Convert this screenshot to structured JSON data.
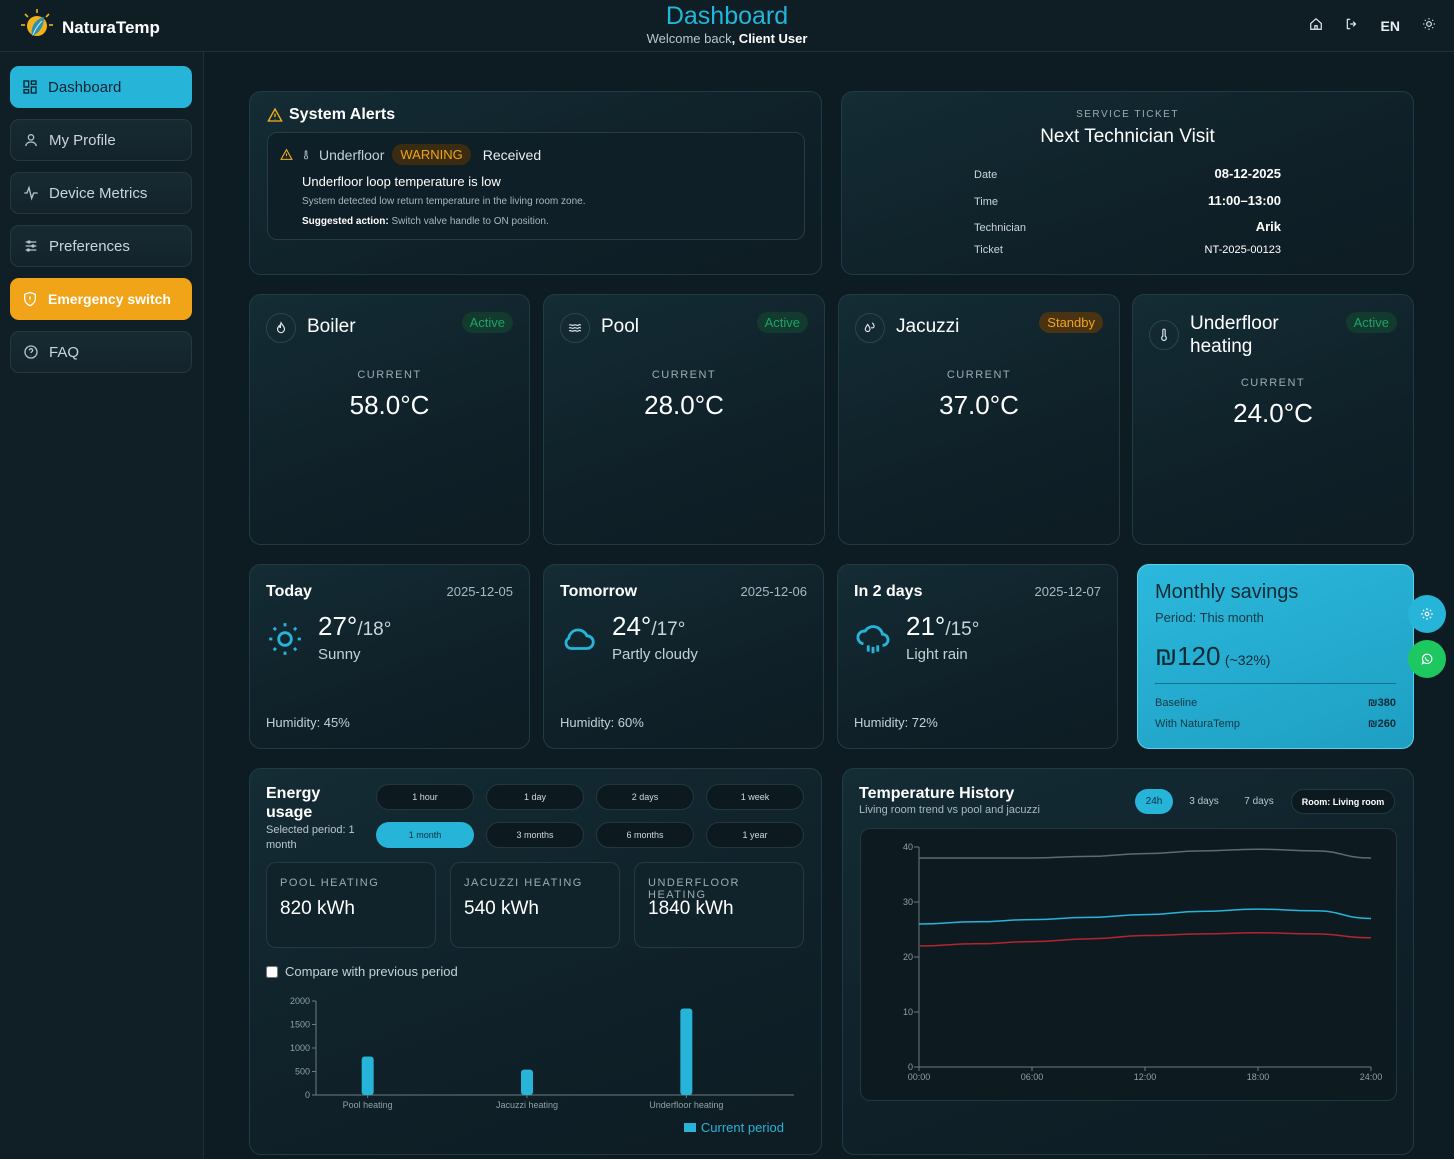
{
  "app": {
    "name": "NaturaTemp"
  },
  "header": {
    "title": "Dashboard",
    "welcome": "Welcome back",
    "user": ", Client User",
    "lang": "EN"
  },
  "sidebar": {
    "items": [
      {
        "label": "Dashboard",
        "icon": "grid-icon"
      },
      {
        "label": "My Profile",
        "icon": "user-icon"
      },
      {
        "label": "Device Metrics",
        "icon": "activity-icon"
      },
      {
        "label": "Preferences",
        "icon": "sliders-icon"
      },
      {
        "label": "Emergency switch",
        "icon": "shield-icon"
      },
      {
        "label": "FAQ",
        "icon": "help-icon"
      }
    ]
  },
  "alerts": {
    "title": "System Alerts",
    "item": {
      "device": "Underfloor",
      "level": "WARNING",
      "status": "Received",
      "headline": "Underfloor loop temperature is low",
      "detail": "System detected low return temperature in the living room zone.",
      "action_label": "Suggested action:",
      "action": " Switch valve handle to ON position."
    }
  },
  "ticket": {
    "kicker": "SERVICE TICKET",
    "title": "Next Technician Visit",
    "rows": [
      {
        "label": "Date",
        "value": "08-12-2025"
      },
      {
        "label": "Time",
        "value": "11:00–13:00"
      },
      {
        "label": "Technician",
        "value": "Arik"
      },
      {
        "label": "Ticket",
        "value": "NT-2025-00123"
      }
    ]
  },
  "devices": [
    {
      "name": "Boiler",
      "status": "Active",
      "current_label": "CURRENT",
      "temp": "58.0°C",
      "icon": "flame-icon"
    },
    {
      "name": "Pool",
      "status": "Active",
      "current_label": "CURRENT",
      "temp": "28.0°C",
      "icon": "waves-icon"
    },
    {
      "name": "Jacuzzi",
      "status": "Standby",
      "current_label": "CURRENT",
      "temp": "37.0°C",
      "icon": "droplets-icon"
    },
    {
      "name": "Underfloor heating",
      "status": "Active",
      "current_label": "CURRENT",
      "temp": "24.0°C",
      "icon": "thermometer-icon"
    }
  ],
  "weather": [
    {
      "day": "Today",
      "date": "2025-12-05",
      "high": "27°",
      "low": "/18°",
      "cond": "Sunny",
      "humidity": "Humidity: 45%",
      "icon": "sun-icon"
    },
    {
      "day": "Tomorrow",
      "date": "2025-12-06",
      "high": "24°",
      "low": "/17°",
      "cond": "Partly cloudy",
      "humidity": "Humidity: 60%",
      "icon": "cloud-icon"
    },
    {
      "day": "In 2 days",
      "date": "2025-12-07",
      "high": "21°",
      "low": "/15°",
      "cond": "Light rain",
      "humidity": "Humidity: 72%",
      "icon": "cloud-rain-icon"
    }
  ],
  "savings": {
    "title": "Monthly savings",
    "period": "Period: This month",
    "amount": "₪120",
    "pct": "(~32%)",
    "baseline_label": "Baseline",
    "baseline": "₪380",
    "with_label": "With NaturaTemp",
    "with": "₪260"
  },
  "energy": {
    "title": "Energy usage",
    "selected": "Selected period: 1 month",
    "ranges": [
      "1 hour",
      "1 day",
      "2 days",
      "1 week",
      "1 month",
      "3 months",
      "6 months",
      "1 year"
    ],
    "selected_range": "1 month",
    "stats": [
      {
        "label": "POOL HEATING",
        "value": "820 kWh"
      },
      {
        "label": "JACUZZI HEATING",
        "value": "540 kWh"
      },
      {
        "label": "UNDERFLOOR HEATING",
        "value": "1840 kWh"
      }
    ],
    "compare_label": "Compare with previous period",
    "legend": "Current period"
  },
  "history": {
    "title": "Temperature History",
    "subtitle": "Living room trend vs pool and jacuzzi",
    "ranges": [
      "24h",
      "3 days",
      "7 days"
    ],
    "selected_range": "24h",
    "room": "Room: Living room"
  },
  "chart_data": [
    {
      "type": "bar",
      "categories": [
        "Pool heating",
        "Jacuzzi heating",
        "Underfloor heating"
      ],
      "series": [
        {
          "name": "Current period",
          "values": [
            820,
            540,
            1840
          ]
        }
      ],
      "yticks": [
        0,
        500,
        1000,
        1500,
        2000
      ],
      "ylim": [
        0,
        2000
      ],
      "color": "#27b4d9"
    },
    {
      "type": "line",
      "x": [
        "00:00",
        "03:00",
        "06:00",
        "09:00",
        "12:00",
        "15:00",
        "18:00",
        "21:00",
        "24:00"
      ],
      "xticks": [
        "00:00",
        "06:00",
        "12:00",
        "18:00",
        "24:00"
      ],
      "yticks": [
        0,
        10,
        20,
        30,
        40
      ],
      "ylim": [
        0,
        40
      ],
      "series": [
        {
          "values": [
            38.0,
            38.0,
            38.0,
            38.3,
            38.8,
            39.3,
            39.6,
            39.3,
            38.0
          ],
          "color": "#5f6b70"
        },
        {
          "values": [
            26.0,
            26.4,
            26.8,
            27.2,
            27.7,
            28.3,
            28.7,
            28.4,
            27.0
          ],
          "color": "#27b4d9"
        },
        {
          "values": [
            22.0,
            22.4,
            22.8,
            23.3,
            23.9,
            24.2,
            24.4,
            24.2,
            23.5
          ],
          "color": "#b3262b"
        }
      ],
      "grid": false
    }
  ]
}
